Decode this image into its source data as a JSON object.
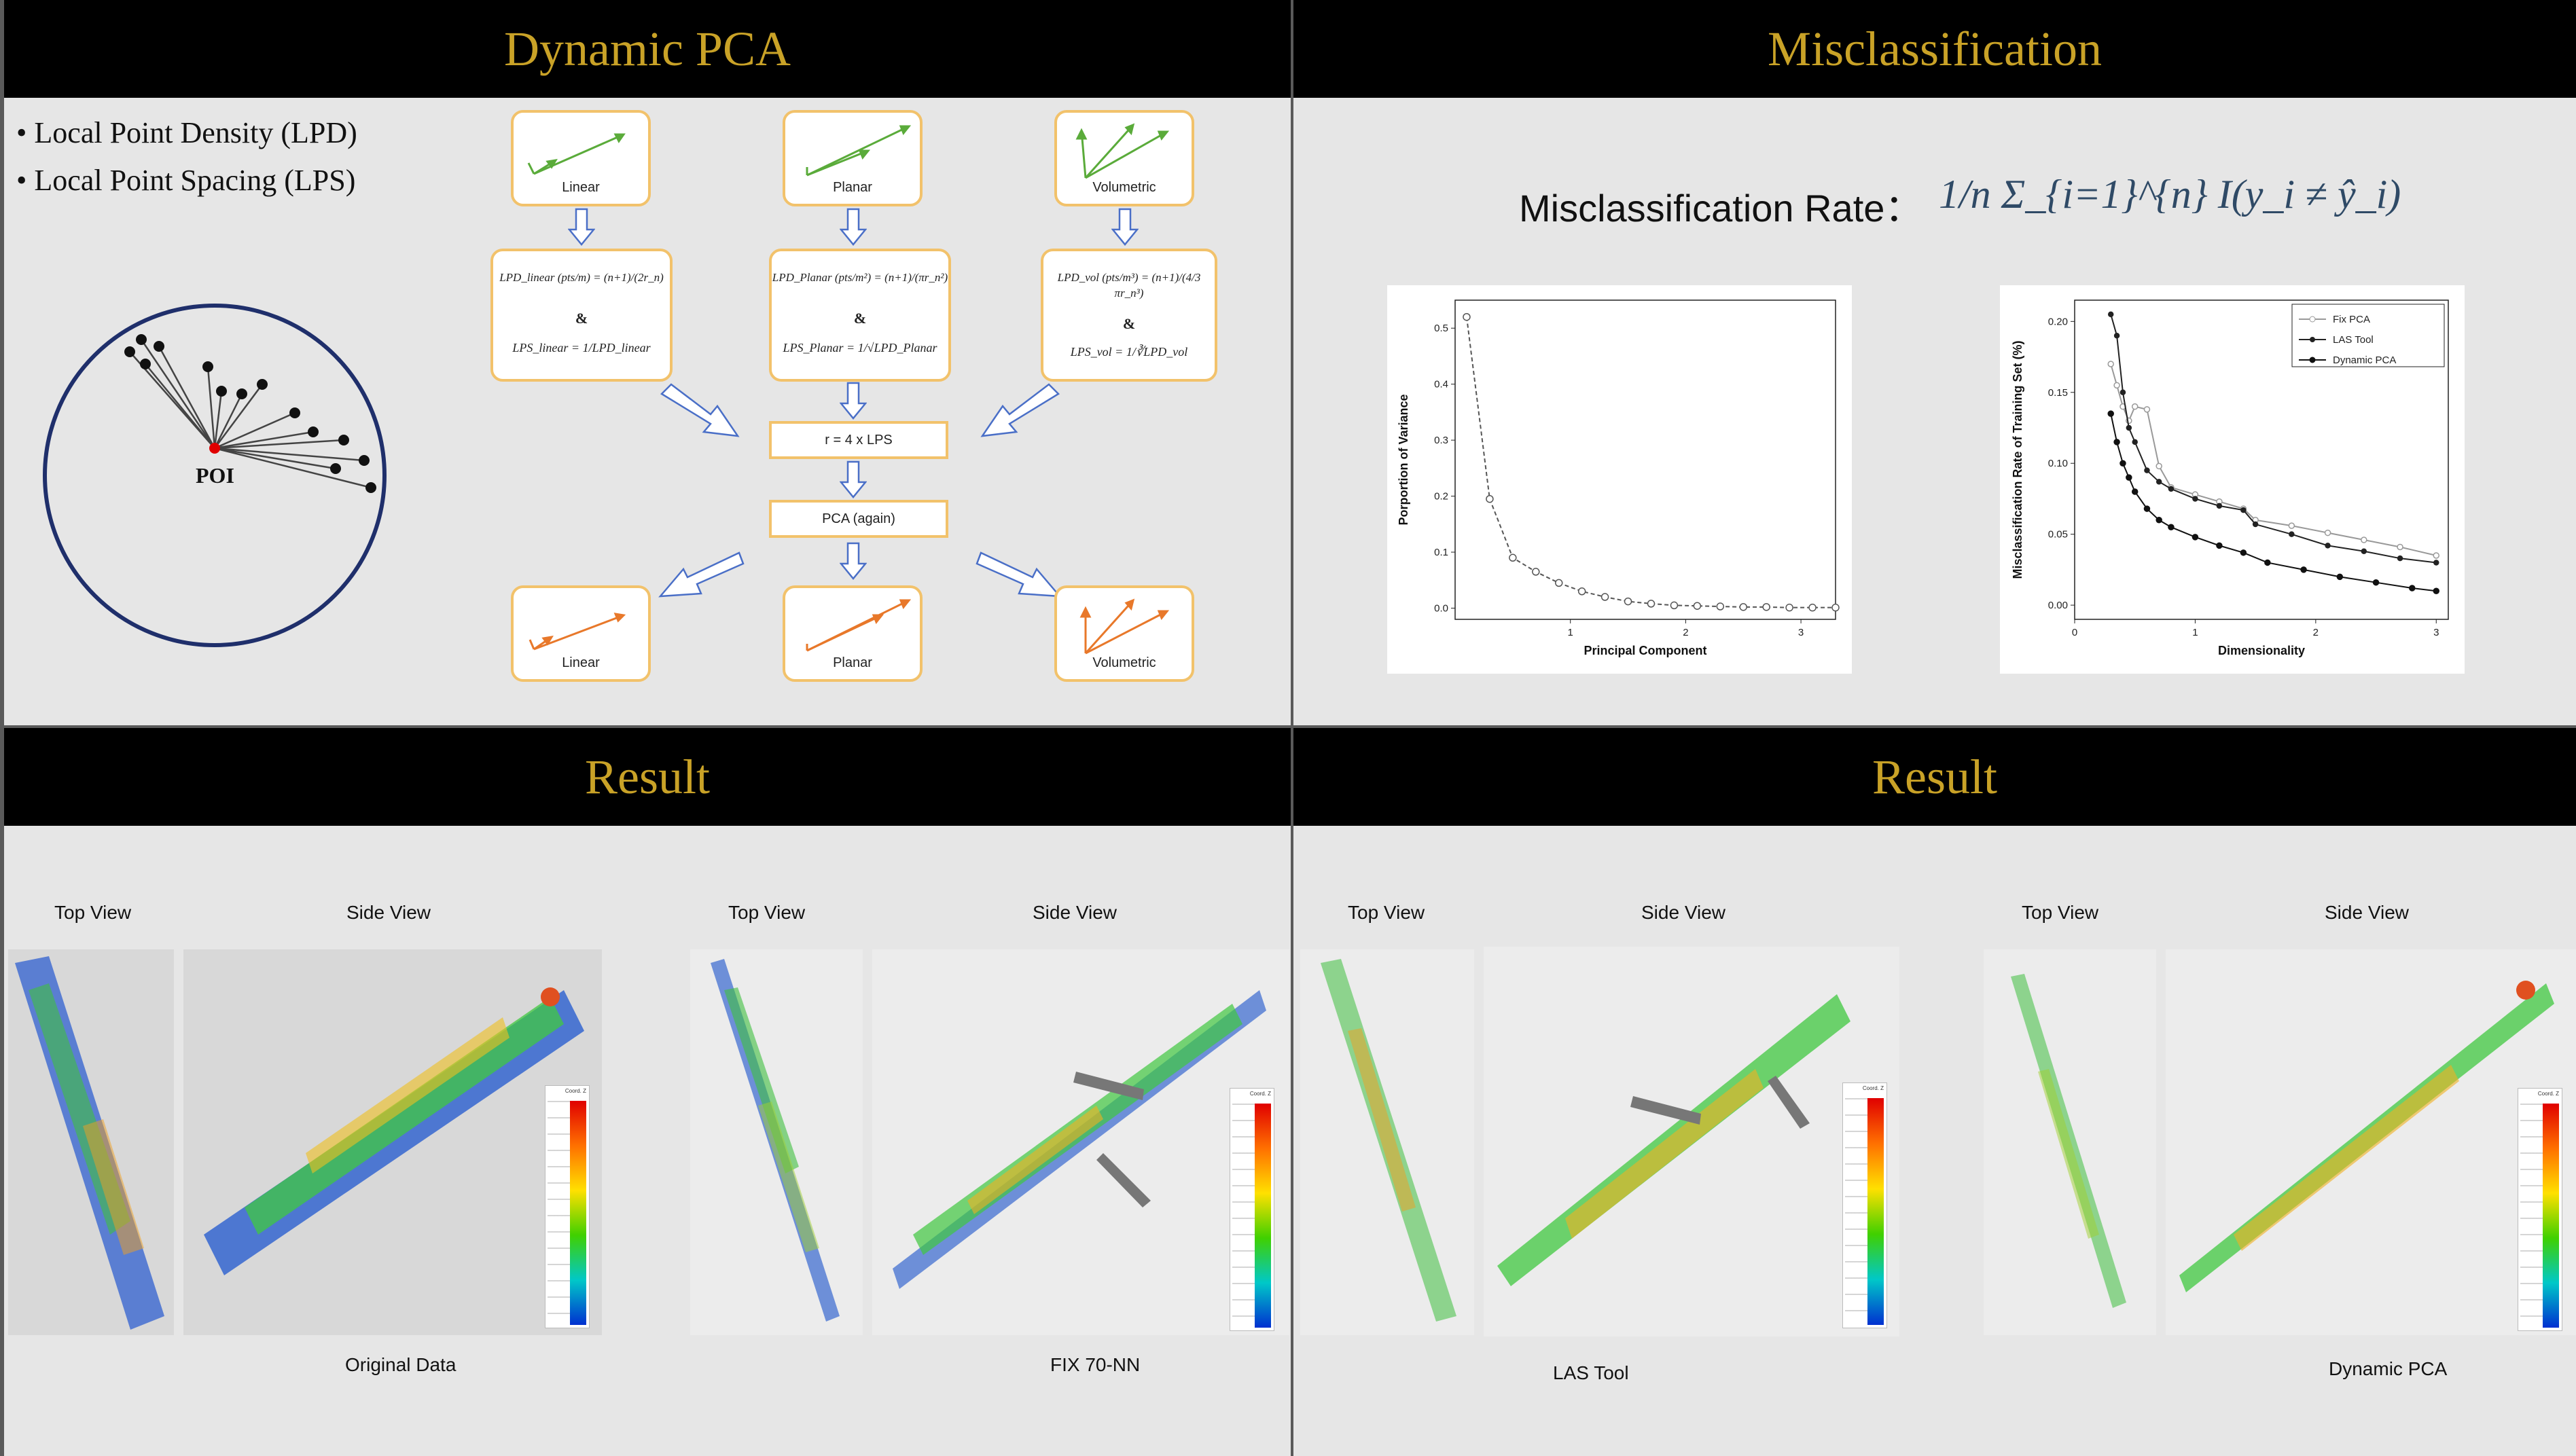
{
  "panels": {
    "dynamic_pca": {
      "title": "Dynamic PCA",
      "bullets": [
        "Local Point Density (LPD)",
        "Local Point Spacing (LPS)"
      ],
      "poi_label": "POI",
      "top_boxes": [
        "Linear",
        "Planar",
        "Volumetric"
      ],
      "formulas": {
        "linear": {
          "lpd": "LPD_linear (pts/m) = (n+1)/(2r_n)",
          "and": "&",
          "lps": "LPS_linear = 1/LPD_linear"
        },
        "planar": {
          "lpd": "LPD_Planar (pts/m²) = (n+1)/(πr_n²)",
          "and": "&",
          "lps": "LPS_Planar = 1/√LPD_Planar"
        },
        "vol": {
          "lpd": "LPD_vol (pts/m³) = (n+1)/(4/3 πr_n³)",
          "and": "&",
          "lps": "LPS_vol = 1/∛LPD_vol"
        }
      },
      "step1": "r = 4 x LPS",
      "step2": "PCA (again)",
      "bottom_boxes": [
        "Linear",
        "Planar",
        "Volumetric"
      ]
    },
    "misclassification": {
      "title": "Misclassification",
      "rate_label": "Misclassification Rate：",
      "rate_formula": "1/n Σ_{i=1}^{n} I(y_i ≠ ŷ_i)"
    },
    "result_left": {
      "title": "Result",
      "group1": {
        "top_label": "Top View",
        "side_label": "Side View",
        "caption": "Original Data"
      },
      "group2": {
        "top_label": "Top View",
        "side_label": "Side View",
        "caption": "FIX 70-NN"
      }
    },
    "result_right": {
      "title": "Result",
      "group1": {
        "top_label": "Top View",
        "side_label": "Side View",
        "caption": "LAS Tool"
      },
      "group2": {
        "top_label": "Top View",
        "side_label": "Side View",
        "caption": "Dynamic PCA"
      }
    }
  },
  "colors": {
    "header_bg": "#000000",
    "title_gold": "#c9a227",
    "box_border": "#f2c26b",
    "arrow_green": "#5aab3a",
    "arrow_orange": "#e8782a",
    "circle_navy": "#1f2f6b",
    "poi_red": "#e00000"
  },
  "chart_data": [
    {
      "type": "line",
      "xlabel": "Principal Component",
      "ylabel": "Porportion of Variance",
      "x_ticks": [
        "1",
        "2",
        "3"
      ],
      "y_ticks": [
        "0.0",
        "0.1",
        "0.2",
        "0.3",
        "0.4",
        "0.5"
      ],
      "xlim": [
        0.0,
        3.3
      ],
      "ylim": [
        -0.02,
        0.55
      ],
      "series": [
        {
          "x": [
            0.1,
            0.3,
            0.5,
            0.7,
            0.9,
            1.1,
            1.3,
            1.5,
            1.7,
            1.9,
            2.1,
            2.3,
            2.5,
            2.7,
            2.9,
            3.1,
            3.3
          ],
          "values": [
            0.52,
            0.195,
            0.09,
            0.065,
            0.045,
            0.03,
            0.02,
            0.012,
            0.008,
            0.005,
            0.004,
            0.003,
            0.002,
            0.002,
            0.001,
            0.001,
            0.001
          ]
        }
      ]
    },
    {
      "type": "line",
      "xlabel": "Dimensionality",
      "ylabel": "Misclassification Rate of Training Set (%)",
      "x_ticks": [
        "0",
        "1",
        "2",
        "3"
      ],
      "y_ticks": [
        "0.00",
        "0.05",
        "0.10",
        "0.15",
        "0.20"
      ],
      "xlim": [
        0,
        3.1
      ],
      "ylim": [
        -0.01,
        0.215
      ],
      "legend": "top-right",
      "series": [
        {
          "name": "Fix PCA",
          "x": [
            0.3,
            0.35,
            0.4,
            0.45,
            0.5,
            0.6,
            0.7,
            0.8,
            1.0,
            1.2,
            1.4,
            1.5,
            1.8,
            2.1,
            2.4,
            2.7,
            3.0
          ],
          "values": [
            0.17,
            0.155,
            0.14,
            0.13,
            0.14,
            0.138,
            0.098,
            0.083,
            0.078,
            0.073,
            0.068,
            0.06,
            0.056,
            0.051,
            0.046,
            0.041,
            0.035
          ]
        },
        {
          "name": "LAS Tool",
          "x": [
            0.3,
            0.35,
            0.4,
            0.45,
            0.5,
            0.6,
            0.7,
            0.8,
            1.0,
            1.2,
            1.4,
            1.5,
            1.8,
            2.1,
            2.4,
            2.7,
            3.0
          ],
          "values": [
            0.205,
            0.19,
            0.15,
            0.125,
            0.115,
            0.095,
            0.087,
            0.082,
            0.075,
            0.07,
            0.067,
            0.057,
            0.05,
            0.042,
            0.038,
            0.033,
            0.03
          ]
        },
        {
          "name": "Dynamic PCA",
          "x": [
            0.3,
            0.35,
            0.4,
            0.45,
            0.5,
            0.6,
            0.7,
            0.8,
            1.0,
            1.2,
            1.4,
            1.6,
            1.9,
            2.2,
            2.5,
            2.8,
            3.0
          ],
          "values": [
            0.135,
            0.115,
            0.1,
            0.09,
            0.08,
            0.068,
            0.06,
            0.055,
            0.048,
            0.042,
            0.037,
            0.03,
            0.025,
            0.02,
            0.016,
            0.012,
            0.01
          ]
        }
      ]
    }
  ]
}
